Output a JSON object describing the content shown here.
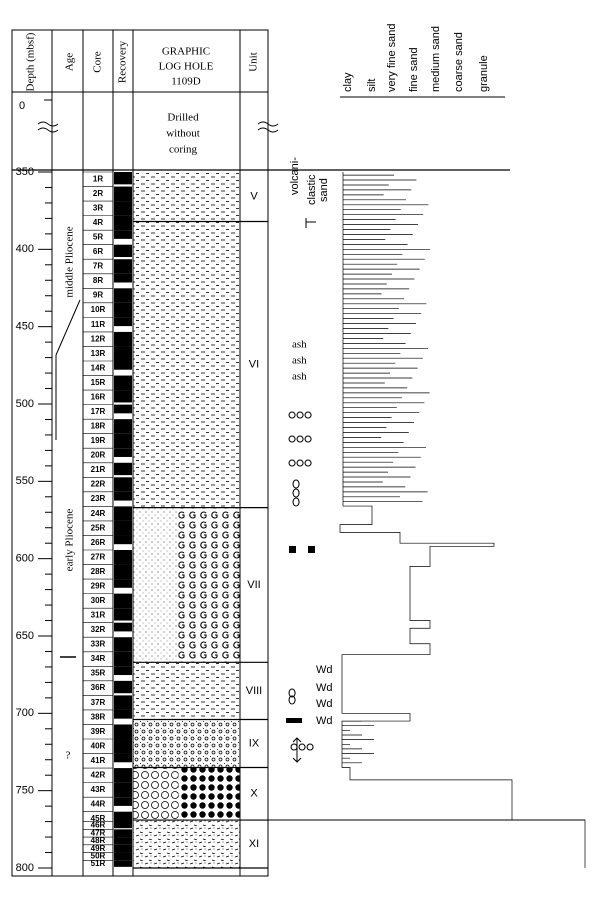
{
  "header": {
    "depth": "Depth (mbsf)",
    "age": "Age",
    "core": "Core",
    "recovery": "Recovery",
    "graphic": [
      "GRAPHIC",
      "LOG HOLE",
      "1109D"
    ],
    "unit": "Unit"
  },
  "depth_axis": {
    "top_tick": 0,
    "range": [
      350,
      800
    ],
    "ticks": [
      350,
      400,
      450,
      500,
      550,
      600,
      650,
      700,
      750,
      800
    ],
    "minor_step": 10
  },
  "drilled": [
    "Drilled",
    "without",
    "coring"
  ],
  "ages": [
    "middle Pliocene",
    "early Pliocene",
    "?"
  ],
  "cores": [
    "1R",
    "2R",
    "3R",
    "4R",
    "5R",
    "6R",
    "7R",
    "8R",
    "9R",
    "10R",
    "11R",
    "12R",
    "13R",
    "14R",
    "15R",
    "16R",
    "17R",
    "18R",
    "19R",
    "20R",
    "21R",
    "22R",
    "23R",
    "24R",
    "25R",
    "26R",
    "27R",
    "28R",
    "29R",
    "30R",
    "31R",
    "32R",
    "33R",
    "34R",
    "35R",
    "36R",
    "37R",
    "38R",
    "39R",
    "40R",
    "41R",
    "42R",
    "43R",
    "44R",
    "45R",
    "46R",
    "47R",
    "48R",
    "49R",
    "50R",
    "51R"
  ],
  "units": [
    {
      "label": "V",
      "top": 350,
      "base": 382
    },
    {
      "label": "VI",
      "top": 382,
      "base": 567
    },
    {
      "label": "VII",
      "top": 567,
      "base": 667
    },
    {
      "label": "VIII",
      "top": 667,
      "base": 704
    },
    {
      "label": "IX",
      "top": 704,
      "base": 735
    },
    {
      "label": "X",
      "top": 735,
      "base": 769
    },
    {
      "label": "XI",
      "top": 769,
      "base": 800
    }
  ],
  "grain_sizes": [
    "clay",
    "silt",
    "very fine sand",
    "fine sand",
    "medium sand",
    "coarse sand",
    "granule"
  ],
  "annotations": {
    "volcaniclastic": [
      "volcani-",
      "clastic",
      "sand"
    ],
    "ash": [
      "ash",
      "ash",
      "ash"
    ],
    "wd": [
      "Wd",
      "Wd",
      "Wd",
      "Wd"
    ]
  }
}
